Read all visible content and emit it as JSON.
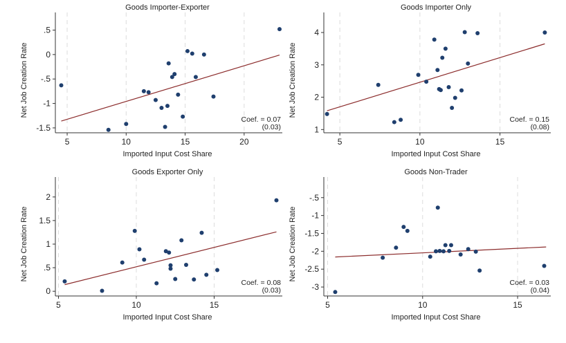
{
  "colors": {
    "points": "#1f3f6e",
    "fit_line": "#8b2b2b",
    "grid": "#dcdcdc"
  },
  "chart_data": [
    {
      "type": "scatter",
      "title": "Goods Importer-Exporter",
      "xlabel": "Imported Input Cost Share",
      "ylabel": "Net Job Creation Rate",
      "xlim": [
        4,
        23
      ],
      "ylim": [
        -1.6,
        0.55
      ],
      "xticks": [
        5,
        10,
        15,
        20
      ],
      "yticks": [
        0.5,
        0,
        -0.5,
        -1,
        -1.5
      ],
      "ytick_labels": [
        ".5",
        "0",
        "-.5",
        "-1",
        "-1.5"
      ],
      "fit": {
        "x": [
          4.5,
          23
        ],
        "y": [
          -1.36,
          -0.01
        ]
      },
      "coef_label": "Coef. = 0.07",
      "se_label": "(0.03)",
      "grid": "vertical dashed",
      "points": [
        {
          "x": 4.5,
          "y": -0.63
        },
        {
          "x": 8.5,
          "y": -1.54
        },
        {
          "x": 10.0,
          "y": -1.42
        },
        {
          "x": 11.5,
          "y": -0.75
        },
        {
          "x": 11.9,
          "y": -0.77
        },
        {
          "x": 12.5,
          "y": -0.93
        },
        {
          "x": 13.0,
          "y": -1.09
        },
        {
          "x": 13.3,
          "y": -1.48
        },
        {
          "x": 13.5,
          "y": -1.05
        },
        {
          "x": 13.6,
          "y": -0.18
        },
        {
          "x": 13.9,
          "y": -0.46
        },
        {
          "x": 14.1,
          "y": -0.4
        },
        {
          "x": 14.4,
          "y": -0.82
        },
        {
          "x": 14.8,
          "y": -1.27
        },
        {
          "x": 15.2,
          "y": 0.07
        },
        {
          "x": 15.6,
          "y": 0.02
        },
        {
          "x": 15.9,
          "y": -0.46
        },
        {
          "x": 16.6,
          "y": 0.0
        },
        {
          "x": 17.4,
          "y": -0.86
        },
        {
          "x": 23.0,
          "y": 0.52
        }
      ]
    },
    {
      "type": "scatter",
      "title": "Goods Importer Only",
      "xlabel": "Imported Input Cost Share",
      "ylabel": "Net Job Creation Rate",
      "xlim": [
        4,
        18
      ],
      "ylim": [
        0.9,
        4.15
      ],
      "xticks": [
        5,
        10,
        15
      ],
      "yticks": [
        1,
        2,
        3,
        4
      ],
      "ytick_labels": [
        "1",
        "2",
        "3",
        "4"
      ],
      "fit": {
        "x": [
          4.2,
          17.8
        ],
        "y": [
          1.58,
          3.65
        ]
      },
      "coef_label": "Coef. = 0.15",
      "se_label": "(0.08)",
      "grid": "vertical dashed",
      "points": [
        {
          "x": 4.2,
          "y": 1.48
        },
        {
          "x": 7.4,
          "y": 2.38
        },
        {
          "x": 8.4,
          "y": 1.23
        },
        {
          "x": 8.8,
          "y": 1.3
        },
        {
          "x": 9.9,
          "y": 2.69
        },
        {
          "x": 10.4,
          "y": 2.48
        },
        {
          "x": 10.9,
          "y": 3.78
        },
        {
          "x": 11.1,
          "y": 2.84
        },
        {
          "x": 11.2,
          "y": 2.25
        },
        {
          "x": 11.3,
          "y": 2.22
        },
        {
          "x": 11.4,
          "y": 3.22
        },
        {
          "x": 11.6,
          "y": 3.5
        },
        {
          "x": 11.8,
          "y": 2.31
        },
        {
          "x": 12.0,
          "y": 1.67
        },
        {
          "x": 12.2,
          "y": 1.98
        },
        {
          "x": 12.6,
          "y": 2.21
        },
        {
          "x": 12.8,
          "y": 4.01
        },
        {
          "x": 13.0,
          "y": 3.04
        },
        {
          "x": 13.6,
          "y": 3.98
        },
        {
          "x": 17.8,
          "y": 4.0
        }
      ]
    },
    {
      "type": "scatter",
      "title": "Goods Exporter Only",
      "xlabel": "Imported Input Cost Share",
      "ylabel": "Net Job Creation Rate",
      "xlim": [
        4.8,
        19.2
      ],
      "ylim": [
        -0.1,
        2.1
      ],
      "xticks": [
        5,
        10,
        15
      ],
      "yticks": [
        2,
        1.5,
        1,
        0.5,
        0
      ],
      "ytick_labels": [
        "2",
        "1.5",
        "1",
        ".5",
        "0"
      ],
      "fit": {
        "x": [
          5.4,
          19.0
        ],
        "y": [
          0.14,
          1.26
        ]
      },
      "coef_label": "Coef. = 0.08",
      "se_label": "(0.03)",
      "grid": "vertical dashed",
      "points": [
        {
          "x": 5.4,
          "y": 0.21
        },
        {
          "x": 7.8,
          "y": 0.01
        },
        {
          "x": 9.1,
          "y": 0.61
        },
        {
          "x": 9.9,
          "y": 1.28
        },
        {
          "x": 10.2,
          "y": 0.89
        },
        {
          "x": 10.5,
          "y": 0.67
        },
        {
          "x": 11.3,
          "y": 0.17
        },
        {
          "x": 11.9,
          "y": 0.85
        },
        {
          "x": 12.1,
          "y": 0.82
        },
        {
          "x": 12.2,
          "y": 0.55
        },
        {
          "x": 12.2,
          "y": 0.48
        },
        {
          "x": 12.5,
          "y": 0.26
        },
        {
          "x": 12.9,
          "y": 1.08
        },
        {
          "x": 13.2,
          "y": 0.56
        },
        {
          "x": 13.7,
          "y": 0.25
        },
        {
          "x": 14.2,
          "y": 1.24
        },
        {
          "x": 14.5,
          "y": 0.35
        },
        {
          "x": 15.2,
          "y": 0.45
        },
        {
          "x": 19.0,
          "y": 1.93
        }
      ]
    },
    {
      "type": "scatter",
      "title": "Goods Non-Trader",
      "xlabel": "Imported Input Cost Share",
      "ylabel": "Net Job Creation Rate",
      "xlim": [
        4.8,
        16.6
      ],
      "ylim": [
        -3.25,
        -0.35
      ],
      "xticks": [
        5,
        10,
        15
      ],
      "yticks": [
        -0.5,
        -1,
        -1.5,
        -2,
        -2.5,
        -3
      ],
      "ytick_labels": [
        "-.5",
        "-1",
        "-1.5",
        "-2",
        "-2.5",
        "-3"
      ],
      "fit": {
        "x": [
          5.4,
          16.5
        ],
        "y": [
          -2.16,
          -1.88
        ]
      },
      "coef_label": "Coef. = 0.03",
      "se_label": "(0.04)",
      "grid": "vertical dashed",
      "points": [
        {
          "x": 5.4,
          "y": -3.14
        },
        {
          "x": 7.9,
          "y": -2.18
        },
        {
          "x": 8.6,
          "y": -1.9
        },
        {
          "x": 9.0,
          "y": -1.32
        },
        {
          "x": 9.2,
          "y": -1.43
        },
        {
          "x": 10.4,
          "y": -2.15
        },
        {
          "x": 10.7,
          "y": -2.0
        },
        {
          "x": 10.8,
          "y": -0.78
        },
        {
          "x": 10.9,
          "y": -1.99
        },
        {
          "x": 11.1,
          "y": -2.0
        },
        {
          "x": 11.2,
          "y": -1.83
        },
        {
          "x": 11.4,
          "y": -1.99
        },
        {
          "x": 11.5,
          "y": -1.83
        },
        {
          "x": 12.0,
          "y": -2.09
        },
        {
          "x": 12.4,
          "y": -1.94
        },
        {
          "x": 12.8,
          "y": -2.01
        },
        {
          "x": 13.0,
          "y": -2.54
        },
        {
          "x": 16.4,
          "y": -2.41
        }
      ]
    }
  ]
}
